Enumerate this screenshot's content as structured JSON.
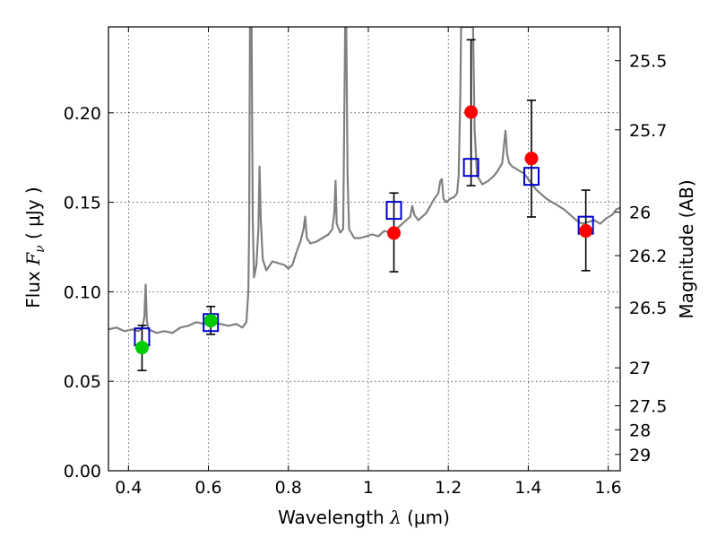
{
  "chart_data": {
    "type": "scatter",
    "title": "",
    "xlabel": "Wavelength  λ (μm)",
    "ylabel": "Flux  F_ν  ( μJy )",
    "ylabel_parts": {
      "prefix": "Flux  ",
      "symbol": "F",
      "subscript": "ν",
      "unit": "  ( μJy )"
    },
    "xlabel_parts": {
      "prefix": "Wavelength  ",
      "symbol": "λ",
      "unit": " (μm)"
    },
    "ylabel_right": "Magnitude (AB)",
    "xlim": [
      0.35,
      1.63
    ],
    "ylim": [
      0.0,
      0.248
    ],
    "grid": true,
    "x_ticks": [
      {
        "value": 0.4,
        "label": "0.4"
      },
      {
        "value": 0.6,
        "label": "0.6"
      },
      {
        "value": 0.8,
        "label": "0.8"
      },
      {
        "value": 1.0,
        "label": "1"
      },
      {
        "value": 1.2,
        "label": "1.2"
      },
      {
        "value": 1.4,
        "label": "1.4"
      },
      {
        "value": 1.6,
        "label": "1.6"
      }
    ],
    "y_ticks": [
      {
        "value": 0.0,
        "label": "0.00"
      },
      {
        "value": 0.05,
        "label": "0.05"
      },
      {
        "value": 0.1,
        "label": "0.10"
      },
      {
        "value": 0.15,
        "label": "0.15"
      },
      {
        "value": 0.2,
        "label": "0.20"
      }
    ],
    "magnitude_ticks": [
      {
        "label": "25.5",
        "flux": 0.2291
      },
      {
        "label": "25.7",
        "flux": 0.1905
      },
      {
        "label": "26",
        "flux": 0.1445
      },
      {
        "label": "26.2",
        "flux": 0.1202
      },
      {
        "label": "26.5",
        "flux": 0.0912
      },
      {
        "label": "27",
        "flux": 0.0575
      },
      {
        "label": "27.5",
        "flux": 0.0363
      },
      {
        "label": "28",
        "flux": 0.0229
      },
      {
        "label": "29",
        "flux": 0.0091
      }
    ],
    "series": [
      {
        "type": "line",
        "color": "#808080",
        "points": [
          [
            0.35,
            0.079
          ],
          [
            0.37,
            0.08
          ],
          [
            0.39,
            0.078
          ],
          [
            0.41,
            0.079
          ],
          [
            0.425,
            0.078
          ],
          [
            0.435,
            0.08
          ],
          [
            0.44,
            0.086
          ],
          [
            0.443,
            0.104
          ],
          [
            0.446,
            0.084
          ],
          [
            0.45,
            0.079
          ],
          [
            0.47,
            0.077
          ],
          [
            0.49,
            0.078
          ],
          [
            0.51,
            0.077
          ],
          [
            0.53,
            0.08
          ],
          [
            0.55,
            0.081
          ],
          [
            0.57,
            0.083
          ],
          [
            0.59,
            0.082
          ],
          [
            0.61,
            0.083
          ],
          [
            0.63,
            0.082
          ],
          [
            0.65,
            0.081
          ],
          [
            0.67,
            0.082
          ],
          [
            0.685,
            0.08
          ],
          [
            0.695,
            0.083
          ],
          [
            0.7,
            0.1
          ],
          [
            0.702,
            0.135
          ],
          [
            0.704,
            0.248
          ],
          [
            0.708,
            0.248
          ],
          [
            0.711,
            0.14
          ],
          [
            0.714,
            0.108
          ],
          [
            0.72,
            0.115
          ],
          [
            0.725,
            0.135
          ],
          [
            0.728,
            0.17
          ],
          [
            0.731,
            0.14
          ],
          [
            0.736,
            0.118
          ],
          [
            0.745,
            0.112
          ],
          [
            0.76,
            0.117
          ],
          [
            0.775,
            0.116
          ],
          [
            0.79,
            0.115
          ],
          [
            0.8,
            0.113
          ],
          [
            0.81,
            0.115
          ],
          [
            0.82,
            0.122
          ],
          [
            0.83,
            0.128
          ],
          [
            0.838,
            0.135
          ],
          [
            0.842,
            0.142
          ],
          [
            0.846,
            0.13
          ],
          [
            0.855,
            0.127
          ],
          [
            0.87,
            0.128
          ],
          [
            0.885,
            0.13
          ],
          [
            0.9,
            0.132
          ],
          [
            0.91,
            0.135
          ],
          [
            0.915,
            0.144
          ],
          [
            0.918,
            0.162
          ],
          [
            0.921,
            0.138
          ],
          [
            0.93,
            0.133
          ],
          [
            0.937,
            0.135
          ],
          [
            0.94,
            0.2
          ],
          [
            0.942,
            0.248
          ],
          [
            0.945,
            0.248
          ],
          [
            0.948,
            0.165
          ],
          [
            0.952,
            0.135
          ],
          [
            0.965,
            0.13
          ],
          [
            0.98,
            0.13
          ],
          [
            0.995,
            0.131
          ],
          [
            1.01,
            0.132
          ],
          [
            1.025,
            0.131
          ],
          [
            1.04,
            0.134
          ],
          [
            1.055,
            0.133
          ],
          [
            1.07,
            0.135
          ],
          [
            1.085,
            0.138
          ],
          [
            1.095,
            0.14
          ],
          [
            1.105,
            0.142
          ],
          [
            1.11,
            0.148
          ],
          [
            1.115,
            0.143
          ],
          [
            1.125,
            0.14
          ],
          [
            1.135,
            0.142
          ],
          [
            1.145,
            0.144
          ],
          [
            1.155,
            0.148
          ],
          [
            1.165,
            0.152
          ],
          [
            1.175,
            0.155
          ],
          [
            1.18,
            0.162
          ],
          [
            1.184,
            0.163
          ],
          [
            1.188,
            0.152
          ],
          [
            1.195,
            0.15
          ],
          [
            1.205,
            0.152
          ],
          [
            1.215,
            0.153
          ],
          [
            1.222,
            0.155
          ],
          [
            1.226,
            0.165
          ],
          [
            1.23,
            0.21
          ],
          [
            1.232,
            0.248
          ],
          [
            1.262,
            0.248
          ],
          [
            1.266,
            0.19
          ],
          [
            1.272,
            0.165
          ],
          [
            1.285,
            0.16
          ],
          [
            1.3,
            0.162
          ],
          [
            1.315,
            0.165
          ],
          [
            1.325,
            0.168
          ],
          [
            1.335,
            0.172
          ],
          [
            1.34,
            0.183
          ],
          [
            1.343,
            0.19
          ],
          [
            1.347,
            0.177
          ],
          [
            1.352,
            0.172
          ],
          [
            1.36,
            0.17
          ],
          [
            1.375,
            0.168
          ],
          [
            1.39,
            0.166
          ],
          [
            1.4,
            0.163
          ],
          [
            1.41,
            0.16
          ],
          [
            1.42,
            0.157
          ],
          [
            1.43,
            0.155
          ],
          [
            1.445,
            0.152
          ],
          [
            1.46,
            0.15
          ],
          [
            1.475,
            0.148
          ],
          [
            1.49,
            0.146
          ],
          [
            1.505,
            0.143
          ],
          [
            1.52,
            0.14
          ],
          [
            1.535,
            0.138
          ],
          [
            1.55,
            0.139
          ],
          [
            1.565,
            0.14
          ],
          [
            1.58,
            0.138
          ],
          [
            1.595,
            0.141
          ],
          [
            1.61,
            0.143
          ],
          [
            1.62,
            0.146
          ],
          [
            1.63,
            0.147
          ]
        ]
      },
      {
        "type": "squares",
        "color": "#0000cc",
        "points": [
          {
            "x": 0.434,
            "y": 0.0748
          },
          {
            "x": 0.606,
            "y": 0.0828
          },
          {
            "x": 1.064,
            "y": 0.1455
          },
          {
            "x": 1.257,
            "y": 0.1695
          },
          {
            "x": 1.408,
            "y": 0.1645
          },
          {
            "x": 1.544,
            "y": 0.1372
          }
        ]
      },
      {
        "type": "points",
        "color": "#00cc00",
        "points": [
          {
            "x": 0.434,
            "y": 0.0688,
            "yerr_low": 0.056,
            "yerr_high": 0.0812
          },
          {
            "x": 0.606,
            "y": 0.0838,
            "yerr_low": 0.0762,
            "yerr_high": 0.0918
          }
        ]
      },
      {
        "type": "points",
        "color": "#ff0000",
        "points": [
          {
            "x": 1.064,
            "y": 0.1328,
            "yerr_low": 0.1112,
            "yerr_high": 0.1552
          },
          {
            "x": 1.257,
            "y": 0.2004,
            "yerr_low": 0.1593,
            "yerr_high": 0.2408
          },
          {
            "x": 1.408,
            "y": 0.1745,
            "yerr_low": 0.1418,
            "yerr_high": 0.207
          },
          {
            "x": 1.544,
            "y": 0.134,
            "yerr_low": 0.1118,
            "yerr_high": 0.1568
          }
        ]
      }
    ]
  }
}
